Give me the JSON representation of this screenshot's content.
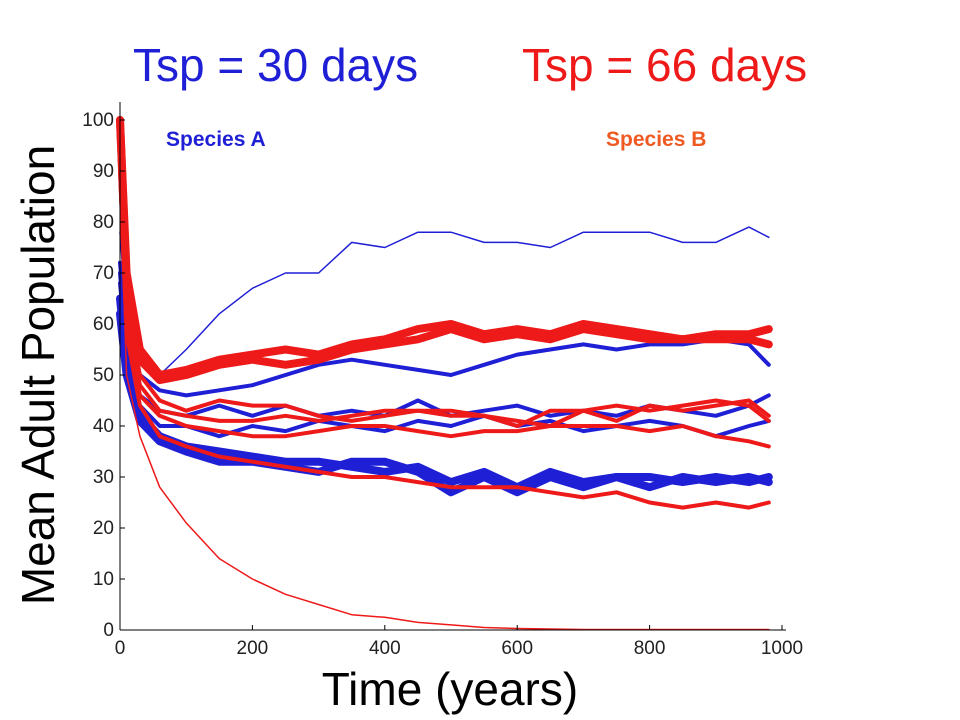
{
  "header": {
    "title_a": "Tsp = 30 days",
    "title_b": "Tsp = 66 days",
    "label_a": "Species A",
    "label_b": "Species B"
  },
  "chart_data": {
    "type": "line",
    "title": "",
    "xlabel": "Time (years)",
    "ylabel": "Mean Adult Population",
    "xlim": [
      0,
      1000
    ],
    "ylim": [
      0,
      100
    ],
    "xticks": [
      0,
      200,
      400,
      600,
      800,
      1000
    ],
    "yticks": [
      0,
      10,
      20,
      30,
      40,
      50,
      60,
      70,
      80,
      90,
      100
    ],
    "grid": false,
    "colors": {
      "species_a": "#1f1fd6",
      "species_b": "#ee1a1a"
    },
    "series": [
      {
        "group": "A",
        "width": "thin",
        "x": [
          0,
          10,
          30,
          60,
          100,
          150,
          200,
          250,
          300,
          350,
          400,
          450,
          500,
          550,
          600,
          650,
          700,
          750,
          800,
          850,
          900,
          950,
          980
        ],
        "y": [
          78,
          60,
          52,
          50,
          55,
          62,
          67,
          70,
          70,
          76,
          75,
          78,
          78,
          76,
          76,
          75,
          78,
          78,
          78,
          76,
          76,
          79,
          77
        ]
      },
      {
        "group": "A",
        "width": "medium",
        "x": [
          0,
          10,
          30,
          60,
          100,
          150,
          200,
          250,
          300,
          350,
          400,
          450,
          500,
          550,
          600,
          650,
          700,
          750,
          800,
          850,
          900,
          950,
          980
        ],
        "y": [
          72,
          58,
          50,
          47,
          46,
          47,
          48,
          50,
          52,
          53,
          52,
          51,
          50,
          52,
          54,
          55,
          56,
          55,
          56,
          56,
          57,
          56,
          52
        ]
      },
      {
        "group": "A",
        "width": "medium",
        "x": [
          0,
          10,
          30,
          60,
          100,
          150,
          200,
          250,
          300,
          350,
          400,
          450,
          500,
          550,
          600,
          650,
          700,
          750,
          800,
          850,
          900,
          950,
          980
        ],
        "y": [
          70,
          55,
          46,
          43,
          42,
          44,
          42,
          44,
          42,
          43,
          42,
          45,
          42,
          43,
          44,
          42,
          43,
          42,
          44,
          43,
          42,
          44,
          46
        ]
      },
      {
        "group": "A",
        "width": "medium",
        "x": [
          0,
          10,
          30,
          60,
          100,
          150,
          200,
          250,
          300,
          350,
          400,
          450,
          500,
          550,
          600,
          650,
          700,
          750,
          800,
          850,
          900,
          950,
          980
        ],
        "y": [
          68,
          54,
          44,
          40,
          40,
          38,
          40,
          39,
          41,
          40,
          39,
          41,
          40,
          42,
          40,
          41,
          39,
          40,
          41,
          40,
          38,
          40,
          41
        ]
      },
      {
        "group": "A",
        "width": "thick",
        "x": [
          0,
          10,
          30,
          60,
          100,
          150,
          200,
          250,
          300,
          350,
          400,
          450,
          500,
          550,
          600,
          650,
          700,
          750,
          800,
          850,
          900,
          950,
          980
        ],
        "y": [
          65,
          52,
          42,
          38,
          36,
          35,
          34,
          33,
          33,
          32,
          31,
          32,
          29,
          31,
          28,
          31,
          29,
          30,
          30,
          29,
          30,
          29,
          30
        ]
      },
      {
        "group": "A",
        "width": "thick",
        "x": [
          0,
          10,
          30,
          60,
          100,
          150,
          200,
          250,
          300,
          350,
          400,
          450,
          500,
          550,
          600,
          650,
          700,
          750,
          800,
          850,
          900,
          950,
          980
        ],
        "y": [
          62,
          50,
          41,
          37,
          35,
          33,
          33,
          32,
          31,
          33,
          33,
          31,
          27,
          30,
          27,
          30,
          28,
          30,
          28,
          30,
          29,
          30,
          29
        ]
      },
      {
        "group": "B",
        "width": "thick",
        "x": [
          0,
          10,
          30,
          60,
          100,
          150,
          200,
          250,
          300,
          350,
          400,
          450,
          500,
          550,
          600,
          650,
          700,
          750,
          800,
          850,
          900,
          950,
          980
        ],
        "y": [
          100,
          70,
          55,
          50,
          51,
          53,
          54,
          55,
          54,
          56,
          57,
          59,
          60,
          58,
          59,
          58,
          60,
          59,
          58,
          57,
          58,
          58,
          59
        ]
      },
      {
        "group": "B",
        "width": "thick",
        "x": [
          0,
          10,
          30,
          60,
          100,
          150,
          200,
          250,
          300,
          350,
          400,
          450,
          500,
          550,
          600,
          650,
          700,
          750,
          800,
          850,
          900,
          950,
          980
        ],
        "y": [
          100,
          68,
          53,
          49,
          50,
          52,
          53,
          52,
          53,
          55,
          56,
          57,
          59,
          57,
          58,
          57,
          59,
          58,
          57,
          57,
          57,
          57,
          56
        ]
      },
      {
        "group": "B",
        "width": "medium",
        "x": [
          0,
          10,
          30,
          60,
          100,
          150,
          200,
          250,
          300,
          350,
          400,
          450,
          500,
          550,
          600,
          650,
          700,
          750,
          800,
          850,
          900,
          950,
          980
        ],
        "y": [
          95,
          64,
          50,
          45,
          43,
          45,
          44,
          44,
          42,
          41,
          42,
          43,
          43,
          42,
          41,
          40,
          43,
          41,
          44,
          43,
          44,
          45,
          42
        ]
      },
      {
        "group": "B",
        "width": "medium",
        "x": [
          0,
          10,
          30,
          60,
          100,
          150,
          200,
          250,
          300,
          350,
          400,
          450,
          500,
          550,
          600,
          650,
          700,
          750,
          800,
          850,
          900,
          950,
          980
        ],
        "y": [
          93,
          62,
          48,
          43,
          42,
          41,
          41,
          42,
          41,
          42,
          43,
          43,
          42,
          42,
          40,
          43,
          43,
          44,
          43,
          44,
          45,
          44,
          41
        ]
      },
      {
        "group": "B",
        "width": "medium",
        "x": [
          0,
          10,
          30,
          60,
          100,
          150,
          200,
          250,
          300,
          350,
          400,
          450,
          500,
          550,
          600,
          650,
          700,
          750,
          800,
          850,
          900,
          950,
          980
        ],
        "y": [
          92,
          60,
          46,
          42,
          40,
          39,
          38,
          38,
          39,
          40,
          40,
          39,
          38,
          39,
          39,
          40,
          40,
          40,
          39,
          40,
          38,
          37,
          36
        ]
      },
      {
        "group": "B",
        "width": "medium",
        "x": [
          0,
          10,
          30,
          60,
          100,
          150,
          200,
          250,
          300,
          350,
          400,
          450,
          500,
          550,
          600,
          650,
          700,
          750,
          800,
          850,
          900,
          950,
          980
        ],
        "y": [
          90,
          58,
          44,
          38,
          36,
          34,
          33,
          32,
          31,
          30,
          30,
          29,
          28,
          28,
          28,
          27,
          26,
          27,
          25,
          24,
          25,
          24,
          25
        ]
      },
      {
        "group": "B",
        "width": "thin",
        "x": [
          0,
          10,
          30,
          60,
          100,
          150,
          200,
          250,
          300,
          350,
          400,
          450,
          500,
          550,
          600,
          650,
          700,
          750,
          800,
          850,
          900,
          950,
          980
        ],
        "y": [
          88,
          50,
          38,
          28,
          21,
          14,
          10,
          7,
          5,
          3,
          2.5,
          1.5,
          1,
          0.5,
          0.3,
          0.2,
          0.1,
          0.1,
          0.1,
          0.1,
          0.1,
          0.1,
          0.1
        ]
      }
    ]
  }
}
